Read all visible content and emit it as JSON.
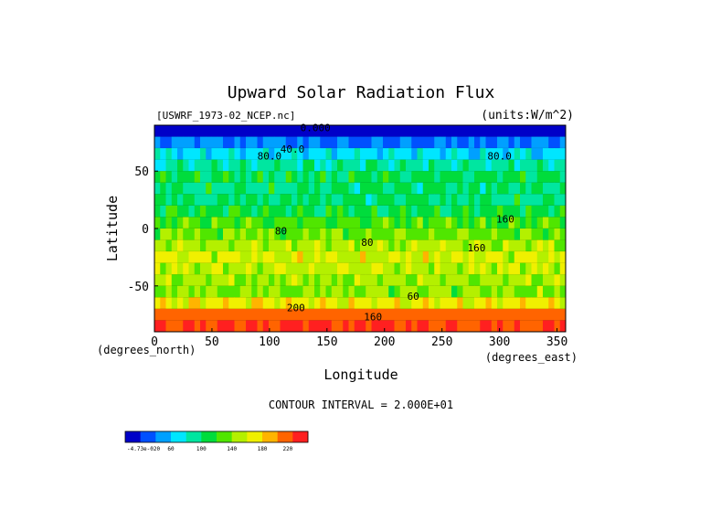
{
  "chart_data": {
    "type": "heatmap",
    "title": "Upward Solar Radiation Flux",
    "source_label": "[USWRF_1973-02_NCEP.nc]",
    "units_label": "(units:W/m^2)",
    "xlabel": "Longitude",
    "ylabel": "Latitude",
    "x_unit_label": "(degrees_east)",
    "y_unit_label": "(degrees_north)",
    "xlim": [
      0,
      357.5
    ],
    "ylim": [
      -90,
      90
    ],
    "x_ticks": [
      "0",
      "50",
      "100",
      "150",
      "200",
      "250",
      "300",
      "350"
    ],
    "y_ticks": [
      "50",
      "0",
      "-50"
    ],
    "contour_interval_text": "CONTOUR INTERVAL = 2.000E+01",
    "contour_labels": [
      "0.000",
      "40.0",
      "80.0",
      "80.0",
      "80",
      "160",
      "80",
      "160",
      "60",
      "200",
      "160"
    ],
    "colorbar": {
      "tick_labels": [
        "-4.73e-020",
        "60",
        "100",
        "140",
        "180",
        "220"
      ],
      "levels": [
        0,
        20,
        40,
        60,
        80,
        100,
        120,
        140,
        160,
        180,
        200,
        220
      ],
      "colors": [
        "#0000c8",
        "#0050ff",
        "#00a0ff",
        "#00e6ff",
        "#00e6a0",
        "#00dc3c",
        "#50e600",
        "#b4f000",
        "#f0f000",
        "#ffb400",
        "#ff6400",
        "#ff2020"
      ]
    },
    "latitudes": [
      85,
      75,
      65,
      55,
      45,
      35,
      25,
      15,
      5,
      -5,
      -15,
      -25,
      -35,
      -45,
      -55,
      -65,
      -75,
      -85
    ],
    "zonal_mean_values": [
      10,
      40,
      70,
      90,
      105,
      100,
      100,
      110,
      125,
      135,
      150,
      160,
      155,
      145,
      140,
      170,
      210,
      220
    ],
    "grid": false
  }
}
